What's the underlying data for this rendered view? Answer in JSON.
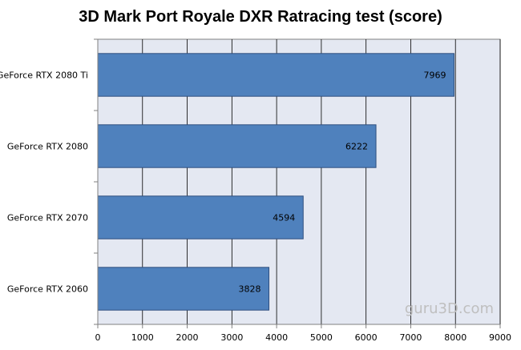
{
  "chart_data": {
    "type": "bar",
    "orientation": "horizontal",
    "title": "3D Mark Port Royale DXR Ratracing test (score)",
    "categories": [
      "GeForce RTX 2080 Ti",
      "GeForce RTX 2080",
      "GeForce RTX 2070",
      "GeForce RTX 2060"
    ],
    "values": [
      7969,
      6222,
      4594,
      3828
    ],
    "xlim": [
      0,
      9000
    ],
    "xticks": [
      0,
      1000,
      2000,
      3000,
      4000,
      5000,
      6000,
      7000,
      8000,
      9000
    ],
    "grid": true,
    "bar_color": "#4F81BD",
    "bar_edge_color": "#2F4F7F",
    "plot_background": "#E4E8F2"
  },
  "watermark": "guru3D.com"
}
